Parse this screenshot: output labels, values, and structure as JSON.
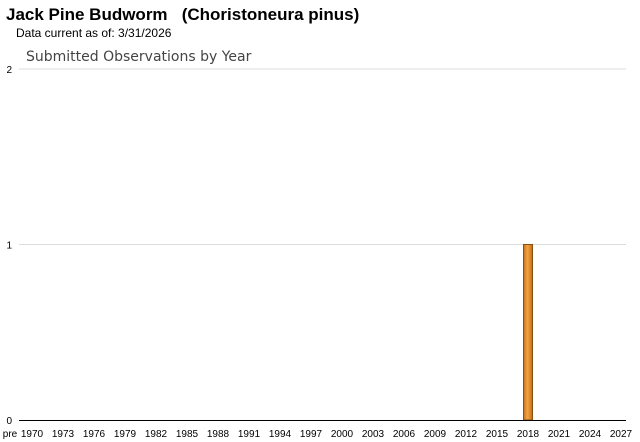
{
  "header": {
    "title": "Jack Pine Budworm   (Choristoneura pinus)",
    "subtitle": "Data current as of: 3/31/2026"
  },
  "chart_data": {
    "type": "bar",
    "title": "Submitted Observations by Year",
    "xlabel": "",
    "ylabel": "",
    "ylim": [
      0,
      2
    ],
    "yticks": [
      0,
      1,
      2
    ],
    "grid": true,
    "x_tick_labels": [
      "pre",
      "1970",
      "1973",
      "1976",
      "1979",
      "1982",
      "1985",
      "1988",
      "1991",
      "1994",
      "1997",
      "2000",
      "2003",
      "2006",
      "2009",
      "2012",
      "2015",
      "2018",
      "2021",
      "2024",
      "2027"
    ],
    "categories": [
      "2018"
    ],
    "values": [
      1
    ],
    "colors": {
      "bar": "#e8922a",
      "bar_edge": "#8a4f0e",
      "grid": "#dddddd",
      "axis": "#000000"
    }
  }
}
